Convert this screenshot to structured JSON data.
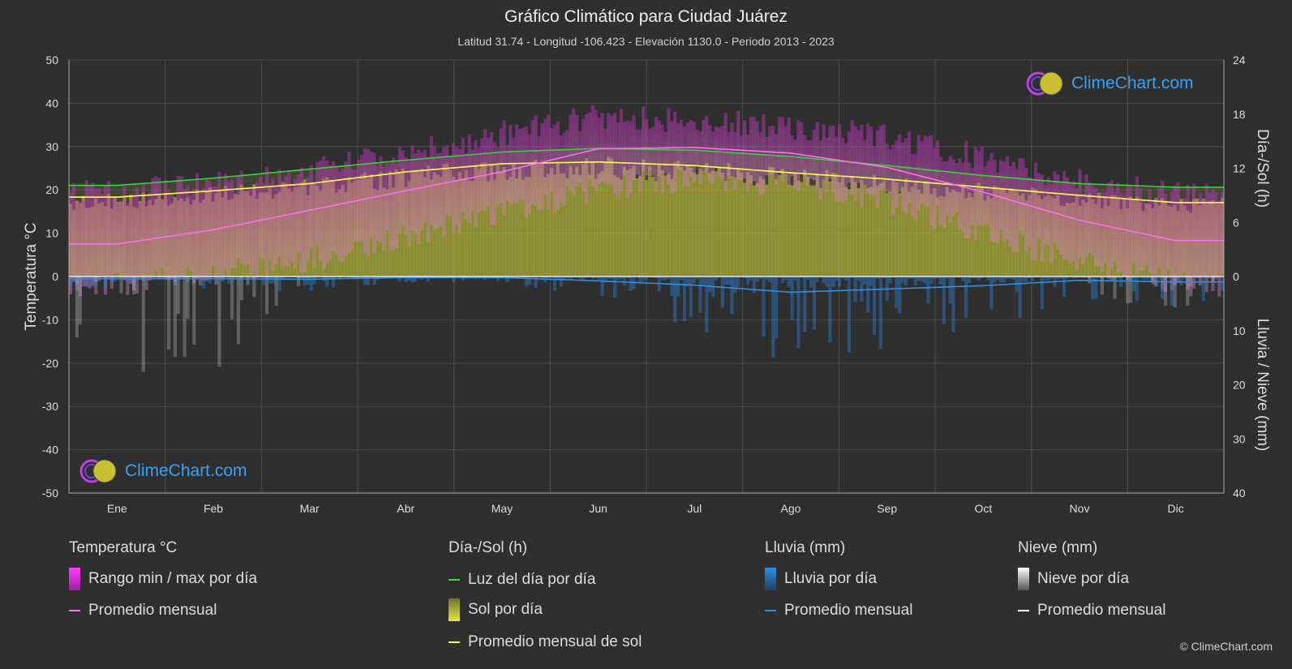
{
  "title": "Gráfico Climático para Ciudad Juárez",
  "subtitle": "Latitud 31.74 - Longitud -106.423 - Elevación 1130.0 - Periodo 2013 - 2023",
  "copyright": "© ClimeChart.com",
  "logo_text": "ClimeChart.com",
  "colors": {
    "background": "#2f2f2f",
    "temp_range": "#d23ad2",
    "temp_avg": "#ff6ef0",
    "daylight": "#39d339",
    "sunshine": "#c8c83a",
    "sunshine_avg": "#ffff55",
    "rain": "#2f7fd0",
    "rain_avg": "#2f8fe0",
    "snow": "#bdbdbd",
    "snow_avg": "#ffffff",
    "logo": "#3aa0f0"
  },
  "legend": {
    "temperature": {
      "heading": "Temperatura °C",
      "range": "Rango min / max por día",
      "avg": "Promedio mensual"
    },
    "sun": {
      "heading": "Día-/Sol (h)",
      "daylight": "Luz del día por día",
      "sunshine": "Sol por día",
      "sunshine_avg": "Promedio mensual de sol"
    },
    "rain": {
      "heading": "Lluvia (mm)",
      "per_day": "Lluvia por día",
      "avg": "Promedio mensual"
    },
    "snow": {
      "heading": "Nieve (mm)",
      "per_day": "Nieve por día",
      "avg": "Promedio mensual"
    }
  },
  "chart_data": {
    "type": "line",
    "categories": [
      "Ene",
      "Feb",
      "Mar",
      "Abr",
      "May",
      "Jun",
      "Jul",
      "Ago",
      "Sep",
      "Oct",
      "Nov",
      "Dic"
    ],
    "left_axis": {
      "label": "Temperatura °C",
      "ylim": [
        -50,
        50
      ],
      "ticks": [
        50,
        40,
        30,
        20,
        10,
        0,
        -10,
        -20,
        -30,
        -40,
        -50
      ]
    },
    "right_axis_top": {
      "label": "Día-/Sol (h)",
      "ylim": [
        0,
        24
      ],
      "ticks": [
        24,
        18,
        12,
        6,
        0
      ]
    },
    "right_axis_bottom": {
      "label": "Lluvia / Nieve (mm)",
      "ylim": [
        0,
        40
      ],
      "ticks": [
        0,
        10,
        20,
        30,
        40
      ]
    },
    "grid": true,
    "series": [
      {
        "name": "Promedio mensual",
        "axis": "temperature",
        "values": [
          7.5,
          10.8,
          15.3,
          19.8,
          24.2,
          29.5,
          29.8,
          28.5,
          25.2,
          19.5,
          13.0,
          8.3
        ]
      },
      {
        "name": "Rango min / max por día (max)",
        "axis": "temperature",
        "values": [
          19.5,
          21.5,
          24.5,
          28.5,
          33.0,
          37.0,
          36.0,
          34.5,
          32.5,
          27.5,
          22.0,
          19.0
        ]
      },
      {
        "name": "Rango min / max por día (min)",
        "axis": "temperature",
        "values": [
          -2.0,
          0.5,
          4.0,
          9.0,
          14.5,
          20.5,
          22.5,
          21.5,
          17.5,
          10.5,
          3.0,
          -1.5
        ]
      },
      {
        "name": "Luz del día por día",
        "axis": "daylight",
        "values": [
          10.1,
          10.9,
          11.9,
          12.9,
          13.8,
          14.2,
          14.0,
          13.3,
          12.3,
          11.2,
          10.3,
          9.9
        ]
      },
      {
        "name": "Promedio mensual de sol",
        "axis": "daylight",
        "values": [
          8.8,
          9.5,
          10.3,
          11.6,
          12.5,
          12.7,
          12.3,
          11.5,
          10.8,
          9.9,
          9.0,
          8.2
        ]
      },
      {
        "name": "Lluvia Promedio mensual",
        "axis": "rain",
        "values": [
          0.4,
          0.4,
          0.5,
          0.2,
          0.2,
          0.8,
          1.6,
          2.9,
          2.3,
          1.7,
          0.7,
          1.0
        ]
      },
      {
        "name": "Nieve Promedio mensual",
        "axis": "rain",
        "values": [
          0.1,
          0.1,
          0.0,
          0.0,
          0.0,
          0.0,
          0.0,
          0.0,
          0.0,
          0.0,
          0.0,
          0.1
        ]
      }
    ]
  }
}
